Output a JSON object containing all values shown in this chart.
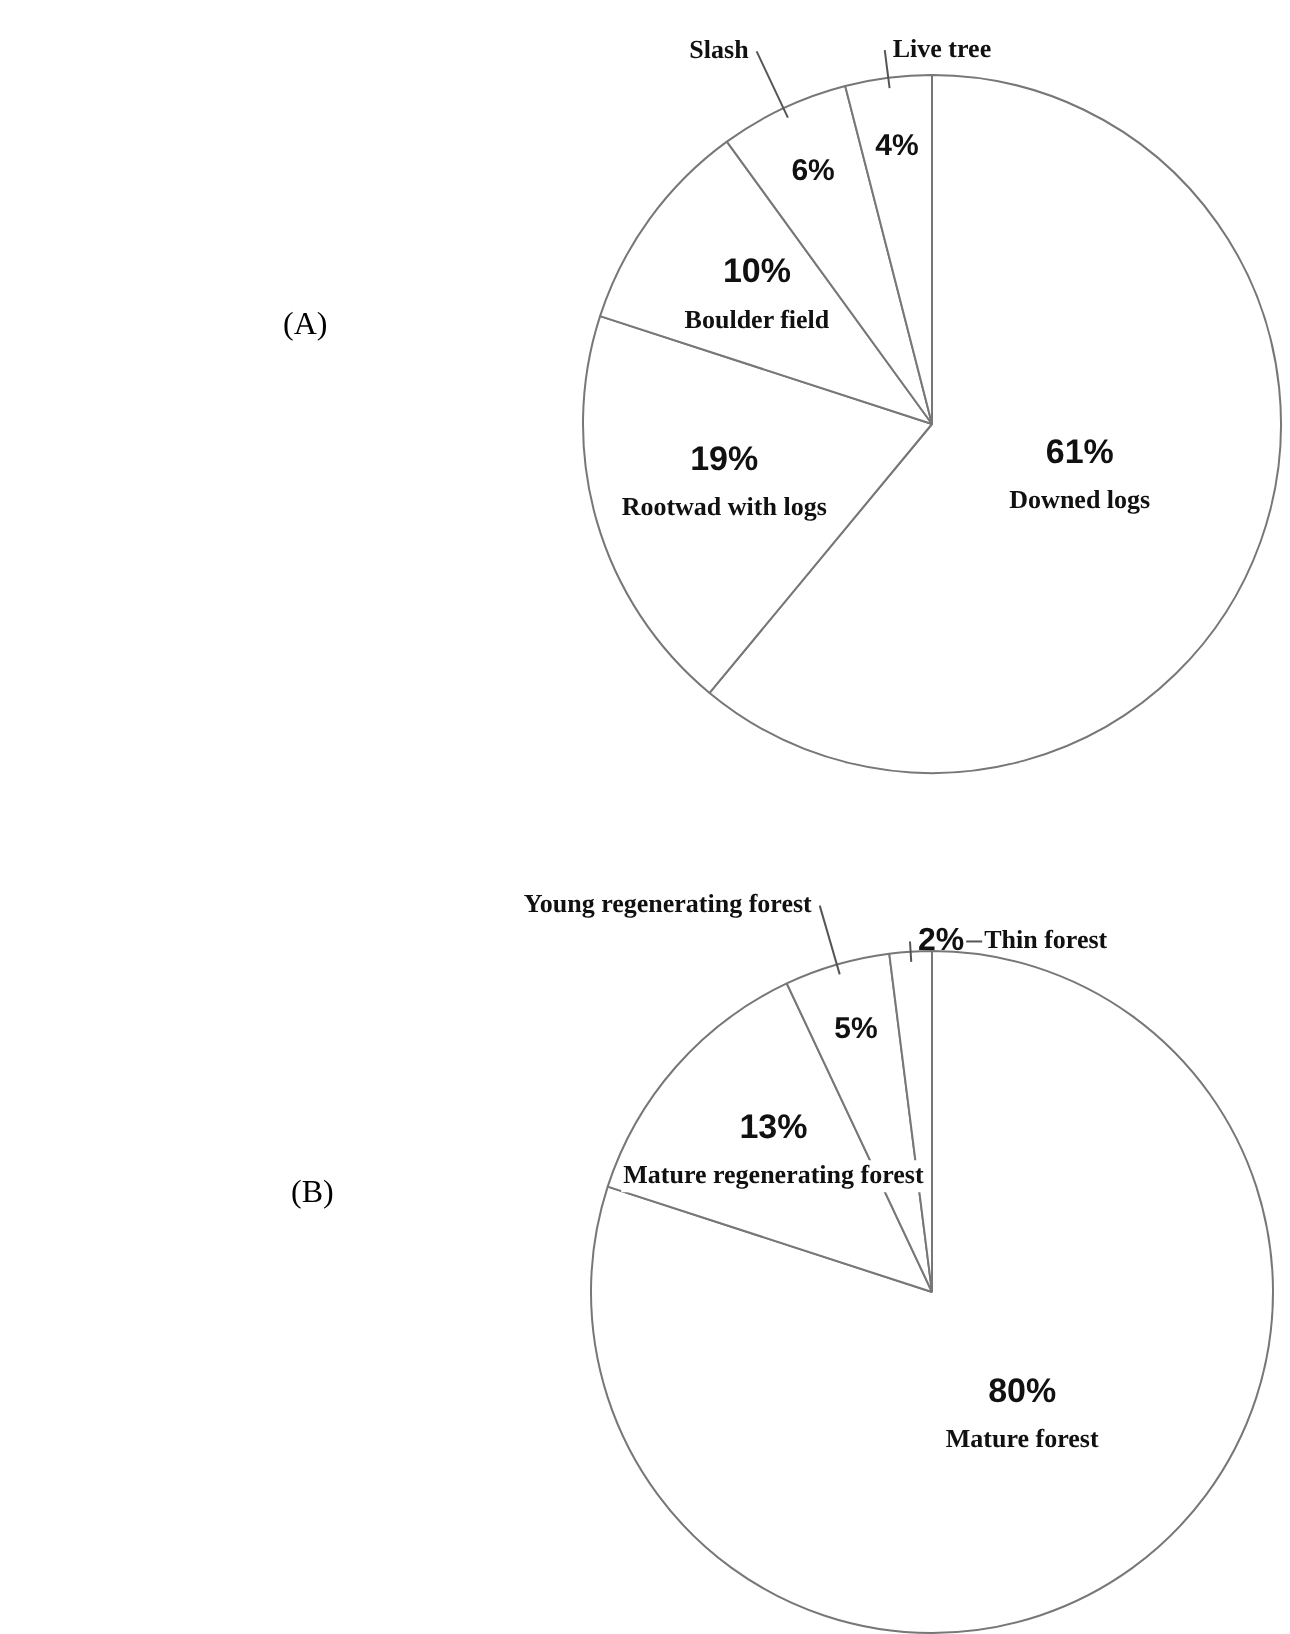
{
  "chart_data": [
    {
      "type": "pie",
      "title": "(A)",
      "categories": [
        "Downed logs",
        "Rootwad with logs",
        "Boulder field",
        "Slash",
        "Live tree"
      ],
      "values": [
        61,
        19,
        10,
        6,
        4
      ],
      "colors": [
        "#ffffff",
        "#ffffff",
        "#ffffff",
        "#ffffff",
        "#ffffff"
      ],
      "value_labels": [
        "61%",
        "19%",
        "10%",
        "6%",
        "4%"
      ],
      "legend": false
    },
    {
      "type": "pie",
      "title": "(B)",
      "categories": [
        "Mature forest",
        "Mature regenerating forest",
        "Young regenerating forest",
        "Thin forest"
      ],
      "values": [
        80,
        13,
        5,
        2
      ],
      "colors": [
        "#ffffff",
        "#ffffff",
        "#ffffff",
        "#ffffff"
      ],
      "value_labels": [
        "80%",
        "13%",
        "5%",
        "2%"
      ],
      "legend": false
    }
  ]
}
